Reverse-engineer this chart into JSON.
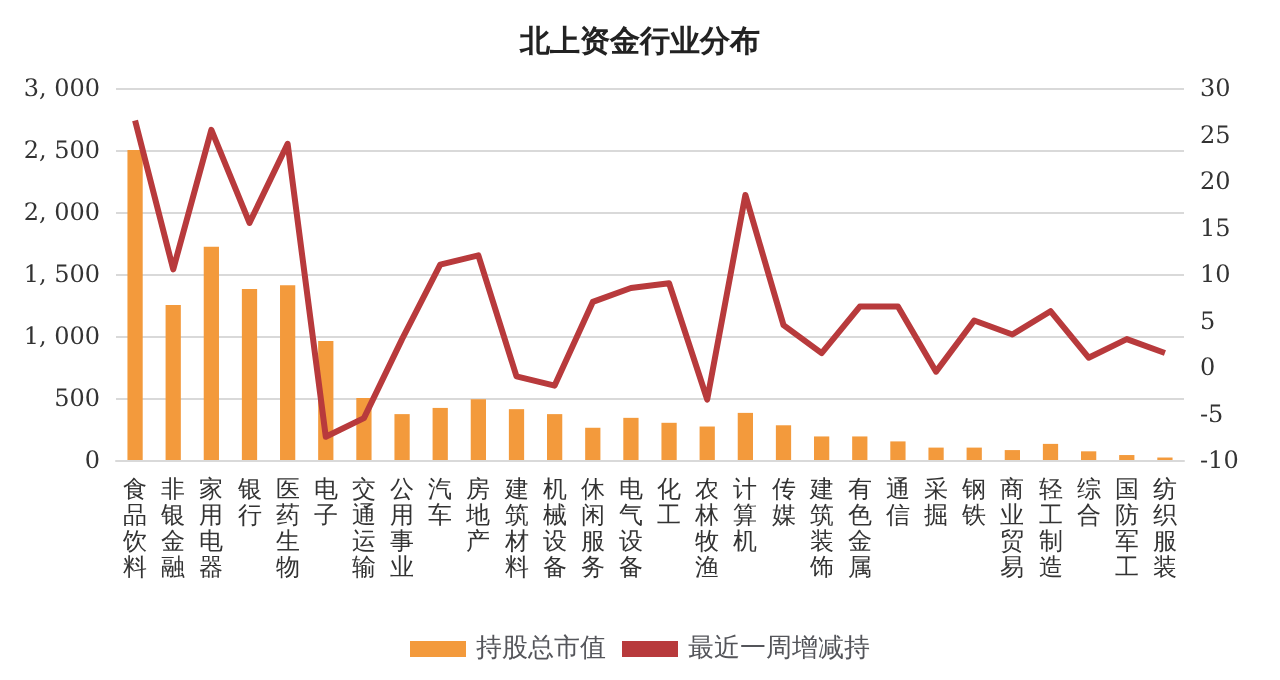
{
  "chart_data": {
    "type": "bar",
    "title": "北上资金行业分布",
    "categories": [
      "食品饮料",
      "非银金融",
      "家用电器",
      "银行",
      "医药生物",
      "电子",
      "交通运输",
      "公用事业",
      "汽车",
      "房地产",
      "建筑材料",
      "机械设备",
      "休闲服务",
      "电气设备",
      "化工",
      "农林牧渔",
      "计算机",
      "传媒",
      "建筑装饰",
      "有色金属",
      "通信",
      "采掘",
      "钢铁",
      "商业贸易",
      "轻工制造",
      "综合",
      "国防军工",
      "纺织服装"
    ],
    "series": [
      {
        "name": "持股总市值",
        "color": "#f39a3c",
        "values": [
          2500,
          1250,
          1720,
          1380,
          1410,
          960,
          500,
          370,
          420,
          490,
          410,
          370,
          260,
          340,
          300,
          270,
          380,
          280,
          190,
          190,
          150,
          100,
          100,
          80,
          130,
          70,
          40,
          20
        ]
      },
      {
        "name": "最近一周增减持",
        "type": "line",
        "axis": "y2",
        "color": "#b83a3c",
        "values": [
          26.5,
          10.5,
          25.5,
          15.5,
          24,
          -7.5,
          -5.5,
          3,
          11,
          12,
          -1,
          -2,
          7,
          8.5,
          9,
          -3.5,
          18.5,
          4.5,
          1.5,
          6.5,
          6.5,
          -0.5,
          5,
          3.5,
          6,
          1,
          3,
          1.5
        ]
      }
    ],
    "ylim": [
      0,
      3000
    ],
    "yticks": [
      0,
      500,
      {
        "value": 1000,
        "label": "1, 000"
      },
      {
        "value": 1500,
        "label": "1, 500"
      },
      {
        "value": 2000,
        "label": "2, 000"
      },
      {
        "value": 2500,
        "label": "2, 500"
      },
      {
        "value": 3000,
        "label": "3, 000"
      }
    ],
    "y2lim": [
      -10,
      30
    ],
    "y2ticks": [
      -10,
      -5,
      0,
      5,
      10,
      15,
      20,
      25,
      30
    ],
    "grid": "y",
    "legend": "bottom",
    "marker": "none"
  }
}
